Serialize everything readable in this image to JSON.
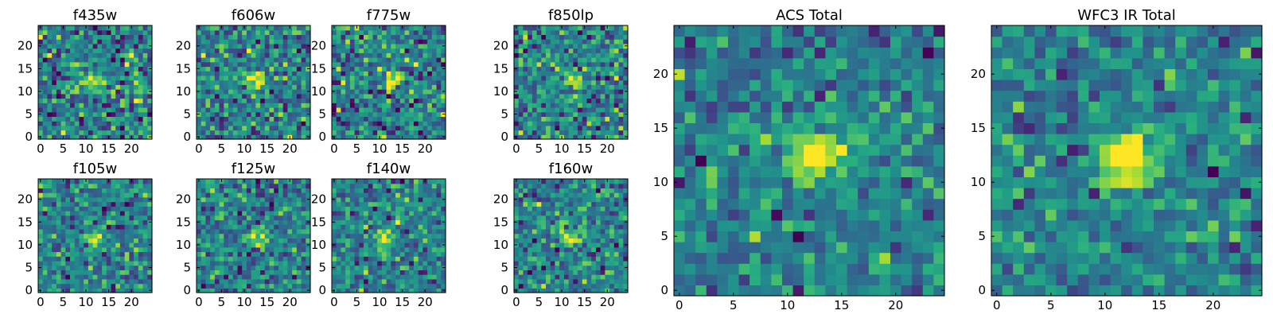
{
  "figure": {
    "colormap": "viridis",
    "colors": {
      "background": "#ffffff",
      "axes_edge": "#000000",
      "viridis_low": "#440154",
      "viridis_mid": "#21918c",
      "viridis_high": "#fde725"
    }
  },
  "chart_data": [
    {
      "type": "heatmap",
      "title": "f435w",
      "xlim": [
        0,
        24
      ],
      "ylim": [
        0,
        24
      ],
      "xticks": [
        0,
        5,
        10,
        15,
        20
      ],
      "yticks": [
        0,
        5,
        10,
        15,
        20
      ],
      "colormap": "viridis",
      "grid": false,
      "source_center": [
        11.5,
        12.5
      ],
      "noise_level": "high"
    },
    {
      "type": "heatmap",
      "title": "f606w",
      "xlim": [
        0,
        24
      ],
      "ylim": [
        0,
        24
      ],
      "xticks": [
        0,
        5,
        10,
        15,
        20
      ],
      "yticks": [
        0,
        5,
        10,
        15,
        20
      ],
      "colormap": "viridis",
      "grid": false,
      "source_center": [
        12,
        12.5
      ],
      "noise_level": "high"
    },
    {
      "type": "heatmap",
      "title": "f775w",
      "xlim": [
        0,
        24
      ],
      "ylim": [
        0,
        24
      ],
      "xticks": [
        0,
        5,
        10,
        15,
        20
      ],
      "yticks": [
        0,
        5,
        10,
        15,
        20
      ],
      "colormap": "viridis",
      "grid": false,
      "source_center": [
        13,
        12.5
      ],
      "noise_level": "high"
    },
    {
      "type": "heatmap",
      "title": "f850lp",
      "xlim": [
        0,
        24
      ],
      "ylim": [
        0,
        24
      ],
      "xticks": [
        0,
        5,
        10,
        15,
        20
      ],
      "yticks": [
        0,
        5,
        10,
        15,
        20
      ],
      "colormap": "viridis",
      "grid": false,
      "source_center": [
        12,
        12.5
      ],
      "noise_level": "high"
    },
    {
      "type": "heatmap",
      "title": "f105w",
      "xlim": [
        0,
        24
      ],
      "ylim": [
        0,
        24
      ],
      "xticks": [
        0,
        5,
        10,
        15,
        20
      ],
      "yticks": [
        0,
        5,
        10,
        15,
        20
      ],
      "colormap": "viridis",
      "grid": false,
      "source_center": [
        12,
        11.5
      ],
      "noise_level": "medium"
    },
    {
      "type": "heatmap",
      "title": "f125w",
      "xlim": [
        0,
        24
      ],
      "ylim": [
        0,
        24
      ],
      "xticks": [
        0,
        5,
        10,
        15,
        20
      ],
      "yticks": [
        0,
        5,
        10,
        15,
        20
      ],
      "colormap": "viridis",
      "grid": false,
      "source_center": [
        12.5,
        12
      ],
      "noise_level": "medium"
    },
    {
      "type": "heatmap",
      "title": "f140w",
      "xlim": [
        0,
        24
      ],
      "ylim": [
        0,
        24
      ],
      "xticks": [
        0,
        5,
        10,
        15,
        20
      ],
      "yticks": [
        0,
        5,
        10,
        15,
        20
      ],
      "colormap": "viridis",
      "grid": false,
      "source_center": [
        11.5,
        11.5
      ],
      "noise_level": "medium"
    },
    {
      "type": "heatmap",
      "title": "f160w",
      "xlim": [
        0,
        24
      ],
      "ylim": [
        0,
        24
      ],
      "xticks": [
        0,
        5,
        10,
        15,
        20
      ],
      "yticks": [
        0,
        5,
        10,
        15,
        20
      ],
      "colormap": "viridis",
      "grid": false,
      "source_center": [
        12,
        11.5
      ],
      "noise_level": "medium"
    },
    {
      "type": "heatmap",
      "title": "ACS Total",
      "xlim": [
        0,
        24
      ],
      "ylim": [
        0,
        24
      ],
      "xticks": [
        0,
        5,
        10,
        15,
        20
      ],
      "yticks": [
        0,
        5,
        10,
        15,
        20
      ],
      "colormap": "viridis",
      "grid": false,
      "source_center": [
        12.5,
        12.5
      ],
      "noise_level": "low"
    },
    {
      "type": "heatmap",
      "title": "WFC3 IR Total",
      "xlim": [
        0,
        24
      ],
      "ylim": [
        0,
        24
      ],
      "xticks": [
        0,
        5,
        10,
        15,
        20
      ],
      "yticks": [
        0,
        5,
        10,
        15,
        20
      ],
      "colormap": "viridis",
      "grid": false,
      "source_center": [
        12,
        12
      ],
      "noise_level": "low"
    }
  ]
}
